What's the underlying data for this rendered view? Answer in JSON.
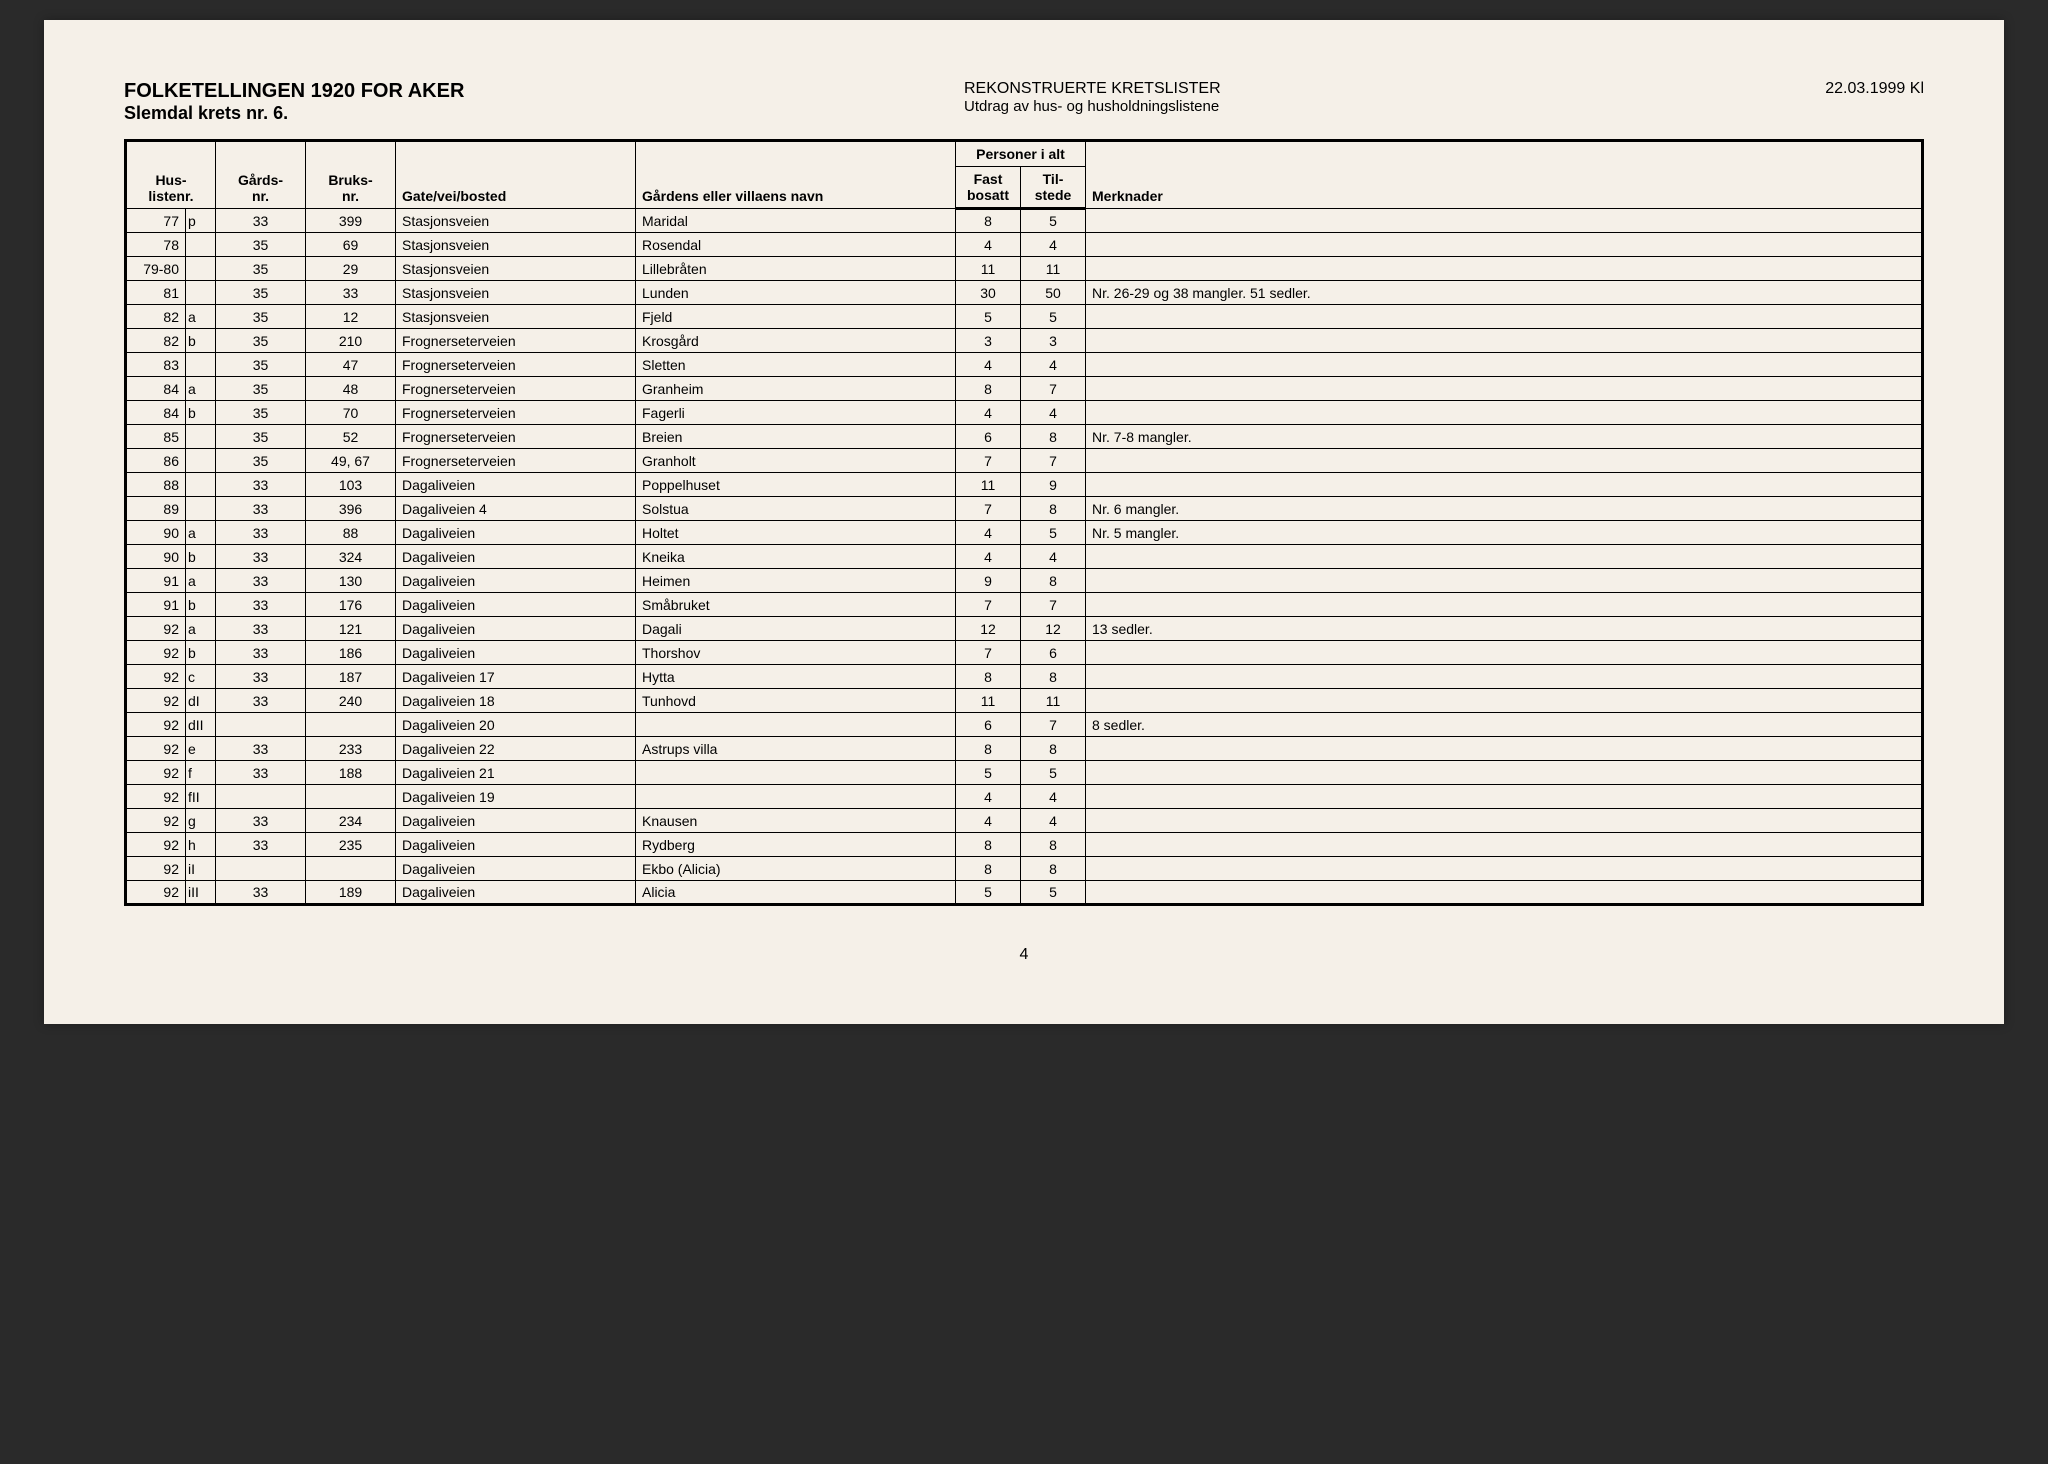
{
  "header": {
    "title_main": "FOLKETELLINGEN 1920 FOR AKER",
    "title_sub": "Slemdal krets nr. 6.",
    "center_title": "REKONSTRUERTE KRETSLISTER",
    "center_sub": "Utdrag av hus- og husholdningslistene",
    "date": "22.03.1999 Kl"
  },
  "table": {
    "columns": {
      "husliste": "Hus-\nlistenr.",
      "gards": "Gårds-\nnr.",
      "bruks": "Bruks-\nnr.",
      "gate": "Gate/vei/bosted",
      "gardens": "Gårdens eller villaens navn",
      "personer_group": "Personer i alt",
      "fast": "Fast\nbosatt",
      "til": "Til-\nstede",
      "merk": "Merknader"
    },
    "rows": [
      {
        "husliste": "77",
        "suffix": "p",
        "gards": "33",
        "bruks": "399",
        "gate": "Stasjonsveien",
        "gardens": "Maridal",
        "fast": "8",
        "til": "5",
        "merk": ""
      },
      {
        "husliste": "78",
        "suffix": "",
        "gards": "35",
        "bruks": "69",
        "gate": "Stasjonsveien",
        "gardens": "Rosendal",
        "fast": "4",
        "til": "4",
        "merk": ""
      },
      {
        "husliste": "79-80",
        "suffix": "",
        "gards": "35",
        "bruks": "29",
        "gate": "Stasjonsveien",
        "gardens": "Lillebråten",
        "fast": "11",
        "til": "11",
        "merk": ""
      },
      {
        "husliste": "81",
        "suffix": "",
        "gards": "35",
        "bruks": "33",
        "gate": "Stasjonsveien",
        "gardens": "Lunden",
        "fast": "30",
        "til": "50",
        "merk": "Nr. 26-29 og 38 mangler. 51 sedler."
      },
      {
        "husliste": "82",
        "suffix": "a",
        "gards": "35",
        "bruks": "12",
        "gate": "Stasjonsveien",
        "gardens": "Fjeld",
        "fast": "5",
        "til": "5",
        "merk": ""
      },
      {
        "husliste": "82",
        "suffix": "b",
        "gards": "35",
        "bruks": "210",
        "gate": "Frognerseterveien",
        "gardens": "Krosgård",
        "fast": "3",
        "til": "3",
        "merk": ""
      },
      {
        "husliste": "83",
        "suffix": "",
        "gards": "35",
        "bruks": "47",
        "gate": "Frognerseterveien",
        "gardens": "Sletten",
        "fast": "4",
        "til": "4",
        "merk": ""
      },
      {
        "husliste": "84",
        "suffix": "a",
        "gards": "35",
        "bruks": "48",
        "gate": "Frognerseterveien",
        "gardens": "Granheim",
        "fast": "8",
        "til": "7",
        "merk": ""
      },
      {
        "husliste": "84",
        "suffix": "b",
        "gards": "35",
        "bruks": "70",
        "gate": "Frognerseterveien",
        "gardens": "Fagerli",
        "fast": "4",
        "til": "4",
        "merk": ""
      },
      {
        "husliste": "85",
        "suffix": "",
        "gards": "35",
        "bruks": "52",
        "gate": "Frognerseterveien",
        "gardens": "Breien",
        "fast": "6",
        "til": "8",
        "merk": "Nr. 7-8 mangler."
      },
      {
        "husliste": "86",
        "suffix": "",
        "gards": "35",
        "bruks": "49, 67",
        "gate": "Frognerseterveien",
        "gardens": "Granholt",
        "fast": "7",
        "til": "7",
        "merk": ""
      },
      {
        "husliste": "88",
        "suffix": "",
        "gards": "33",
        "bruks": "103",
        "gate": "Dagaliveien",
        "gardens": "Poppelhuset",
        "fast": "11",
        "til": "9",
        "merk": ""
      },
      {
        "husliste": "89",
        "suffix": "",
        "gards": "33",
        "bruks": "396",
        "gate": "Dagaliveien 4",
        "gardens": "Solstua",
        "fast": "7",
        "til": "8",
        "merk": "Nr. 6 mangler."
      },
      {
        "husliste": "90",
        "suffix": "a",
        "gards": "33",
        "bruks": "88",
        "gate": "Dagaliveien",
        "gardens": "Holtet",
        "fast": "4",
        "til": "5",
        "merk": "Nr. 5 mangler."
      },
      {
        "husliste": "90",
        "suffix": "b",
        "gards": "33",
        "bruks": "324",
        "gate": "Dagaliveien",
        "gardens": "Kneika",
        "fast": "4",
        "til": "4",
        "merk": ""
      },
      {
        "husliste": "91",
        "suffix": "a",
        "gards": "33",
        "bruks": "130",
        "gate": "Dagaliveien",
        "gardens": "Heimen",
        "fast": "9",
        "til": "8",
        "merk": ""
      },
      {
        "husliste": "91",
        "suffix": "b",
        "gards": "33",
        "bruks": "176",
        "gate": "Dagaliveien",
        "gardens": "Småbruket",
        "fast": "7",
        "til": "7",
        "merk": ""
      },
      {
        "husliste": "92",
        "suffix": "a",
        "gards": "33",
        "bruks": "121",
        "gate": "Dagaliveien",
        "gardens": "Dagali",
        "fast": "12",
        "til": "12",
        "merk": "13 sedler."
      },
      {
        "husliste": "92",
        "suffix": "b",
        "gards": "33",
        "bruks": "186",
        "gate": "Dagaliveien",
        "gardens": "Thorshov",
        "fast": "7",
        "til": "6",
        "merk": ""
      },
      {
        "husliste": "92",
        "suffix": "c",
        "gards": "33",
        "bruks": "187",
        "gate": "Dagaliveien 17",
        "gardens": "Hytta",
        "fast": "8",
        "til": "8",
        "merk": ""
      },
      {
        "husliste": "92",
        "suffix": "dI",
        "gards": "33",
        "bruks": "240",
        "gate": "Dagaliveien 18",
        "gardens": "Tunhovd",
        "fast": "11",
        "til": "11",
        "merk": ""
      },
      {
        "husliste": "92",
        "suffix": "dII",
        "gards": "",
        "bruks": "",
        "gate": "Dagaliveien 20",
        "gardens": "",
        "fast": "6",
        "til": "7",
        "merk": "8 sedler."
      },
      {
        "husliste": "92",
        "suffix": "e",
        "gards": "33",
        "bruks": "233",
        "gate": "Dagaliveien 22",
        "gardens": "Astrups villa",
        "fast": "8",
        "til": "8",
        "merk": ""
      },
      {
        "husliste": "92",
        "suffix": "f",
        "gards": "33",
        "bruks": "188",
        "gate": "Dagaliveien 21",
        "gardens": "",
        "fast": "5",
        "til": "5",
        "merk": ""
      },
      {
        "husliste": "92",
        "suffix": "fII",
        "gards": "",
        "bruks": "",
        "gate": "Dagaliveien 19",
        "gardens": "",
        "fast": "4",
        "til": "4",
        "merk": ""
      },
      {
        "husliste": "92",
        "suffix": "g",
        "gards": "33",
        "bruks": "234",
        "gate": "Dagaliveien",
        "gardens": "Knausen",
        "fast": "4",
        "til": "4",
        "merk": ""
      },
      {
        "husliste": "92",
        "suffix": "h",
        "gards": "33",
        "bruks": "235",
        "gate": "Dagaliveien",
        "gardens": "Rydberg",
        "fast": "8",
        "til": "8",
        "merk": ""
      },
      {
        "husliste": "92",
        "suffix": "iI",
        "gards": "",
        "bruks": "",
        "gate": "Dagaliveien",
        "gardens": "Ekbo (Alicia)",
        "fast": "8",
        "til": "8",
        "merk": ""
      },
      {
        "husliste": "92",
        "suffix": "iII",
        "gards": "33",
        "bruks": "189",
        "gate": "Dagaliveien",
        "gardens": "Alicia",
        "fast": "5",
        "til": "5",
        "merk": ""
      }
    ]
  },
  "page_number": "4"
}
